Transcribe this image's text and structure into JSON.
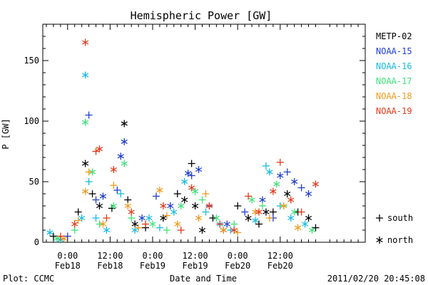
{
  "chart_data": {
    "type": "scatter",
    "title": "Hemispheric Power [GW]",
    "ylabel": "P [GW]",
    "xlabel": "Date and Time",
    "ylim": [
      0,
      180
    ],
    "yticks": [
      0,
      50,
      100,
      150
    ],
    "xlim_hours": [
      -7,
      84
    ],
    "xticks": [
      {
        "hour": 0,
        "time": "0:00",
        "date": "Feb18"
      },
      {
        "hour": 12,
        "time": "12:00",
        "date": "Feb18"
      },
      {
        "hour": 24,
        "time": "0:00",
        "date": "Feb19"
      },
      {
        "hour": 36,
        "time": "12:00",
        "date": "Feb19"
      },
      {
        "hour": 48,
        "time": "0:00",
        "date": "Feb20"
      },
      {
        "hour": 60,
        "time": "12:00",
        "date": "Feb20"
      }
    ],
    "series": [
      {
        "name": "METP-02",
        "color": "#000000",
        "points": [
          {
            "x": -4,
            "y": 5,
            "m": "+"
          },
          {
            "x": 3,
            "y": 25,
            "m": "+"
          },
          {
            "x": 5,
            "y": 65,
            "m": "*"
          },
          {
            "x": 7,
            "y": 40,
            "m": "+"
          },
          {
            "x": 9,
            "y": 30,
            "m": "*"
          },
          {
            "x": 12.5,
            "y": 28,
            "m": "+"
          },
          {
            "x": 16,
            "y": 98,
            "m": "*"
          },
          {
            "x": 17,
            "y": 35,
            "m": "+"
          },
          {
            "x": 19,
            "y": 15,
            "m": "*"
          },
          {
            "x": 22,
            "y": 12,
            "m": "+"
          },
          {
            "x": 27,
            "y": 20,
            "m": "*"
          },
          {
            "x": 31,
            "y": 40,
            "m": "+"
          },
          {
            "x": 33,
            "y": 35,
            "m": "*"
          },
          {
            "x": 35,
            "y": 65,
            "m": "+"
          },
          {
            "x": 36,
            "y": 30,
            "m": "*"
          },
          {
            "x": 38,
            "y": 10,
            "m": "*"
          },
          {
            "x": 41,
            "y": 20,
            "m": "+"
          },
          {
            "x": 44,
            "y": 10,
            "m": "*"
          },
          {
            "x": 48,
            "y": 30,
            "m": "+"
          },
          {
            "x": 51,
            "y": 20,
            "m": "*"
          },
          {
            "x": 54,
            "y": 15,
            "m": "+"
          },
          {
            "x": 56,
            "y": 25,
            "m": "*"
          },
          {
            "x": 58,
            "y": 25,
            "m": "+"
          },
          {
            "x": 62,
            "y": 40,
            "m": "*"
          },
          {
            "x": 65,
            "y": 25,
            "m": "+"
          },
          {
            "x": 68,
            "y": 20,
            "m": "*"
          },
          {
            "x": 70,
            "y": 12,
            "m": "+"
          }
        ]
      },
      {
        "name": "NOAA-15",
        "color": "#1f3ecf",
        "points": [
          {
            "x": 0,
            "y": 5,
            "m": "+"
          },
          {
            "x": 6,
            "y": 105,
            "m": "+"
          },
          {
            "x": 8,
            "y": 35,
            "m": "+"
          },
          {
            "x": 10,
            "y": 38,
            "m": "*"
          },
          {
            "x": 15,
            "y": 71,
            "m": "*"
          },
          {
            "x": 16,
            "y": 83,
            "m": "*"
          },
          {
            "x": 14,
            "y": 43,
            "m": "+"
          },
          {
            "x": 21,
            "y": 20,
            "m": "*"
          },
          {
            "x": 25,
            "y": 38,
            "m": "+"
          },
          {
            "x": 29,
            "y": 30,
            "m": "*"
          },
          {
            "x": 34,
            "y": 57,
            "m": "*"
          },
          {
            "x": 35,
            "y": 55,
            "m": "+"
          },
          {
            "x": 37,
            "y": 60,
            "m": "*"
          },
          {
            "x": 40,
            "y": 30,
            "m": "+"
          },
          {
            "x": 45,
            "y": 15,
            "m": "*"
          },
          {
            "x": 50,
            "y": 25,
            "m": "+"
          },
          {
            "x": 55,
            "y": 35,
            "m": "*"
          },
          {
            "x": 58,
            "y": 20,
            "m": "+"
          },
          {
            "x": 60,
            "y": 55,
            "m": "*"
          },
          {
            "x": 62,
            "y": 58,
            "m": "+"
          },
          {
            "x": 64,
            "y": 50,
            "m": "*"
          },
          {
            "x": 66,
            "y": 45,
            "m": "+"
          },
          {
            "x": 68,
            "y": 40,
            "m": "*"
          }
        ]
      },
      {
        "name": "NOAA-16",
        "color": "#19b9e0",
        "points": [
          {
            "x": -5,
            "y": 8,
            "m": "*"
          },
          {
            "x": -2,
            "y": 2,
            "m": "*"
          },
          {
            "x": 4,
            "y": 20,
            "m": "*"
          },
          {
            "x": 5,
            "y": 138,
            "m": "*"
          },
          {
            "x": 6,
            "y": 50,
            "m": "+"
          },
          {
            "x": 8,
            "y": 20,
            "m": "+"
          },
          {
            "x": 11,
            "y": 10,
            "m": "*"
          },
          {
            "x": 15,
            "y": 40,
            "m": "+"
          },
          {
            "x": 19,
            "y": 10,
            "m": "*"
          },
          {
            "x": 23,
            "y": 20,
            "m": "*"
          },
          {
            "x": 26,
            "y": 12,
            "m": "+"
          },
          {
            "x": 30,
            "y": 25,
            "m": "*"
          },
          {
            "x": 33,
            "y": 50,
            "m": "*"
          },
          {
            "x": 39,
            "y": 25,
            "m": "+"
          },
          {
            "x": 43,
            "y": 15,
            "m": "*"
          },
          {
            "x": 46,
            "y": 10,
            "m": "+"
          },
          {
            "x": 53,
            "y": 18,
            "m": "*"
          },
          {
            "x": 56,
            "y": 63,
            "m": "+"
          },
          {
            "x": 57,
            "y": 58,
            "m": "*"
          },
          {
            "x": 60,
            "y": 30,
            "m": "+"
          },
          {
            "x": 63,
            "y": 20,
            "m": "*"
          },
          {
            "x": 67,
            "y": 15,
            "m": "*"
          }
        ]
      },
      {
        "name": "NOAA-17",
        "color": "#3ee07a",
        "points": [
          {
            "x": -3,
            "y": 3,
            "m": "*"
          },
          {
            "x": 2,
            "y": 10,
            "m": "+"
          },
          {
            "x": 5,
            "y": 99,
            "m": "*"
          },
          {
            "x": 7,
            "y": 58,
            "m": "*"
          },
          {
            "x": 9,
            "y": 15,
            "m": "+"
          },
          {
            "x": 13,
            "y": 30,
            "m": "*"
          },
          {
            "x": 16,
            "y": 65,
            "m": "*"
          },
          {
            "x": 18,
            "y": 20,
            "m": "+"
          },
          {
            "x": 24,
            "y": 15,
            "m": "*"
          },
          {
            "x": 28,
            "y": 10,
            "m": "+"
          },
          {
            "x": 32,
            "y": 30,
            "m": "*"
          },
          {
            "x": 36,
            "y": 42,
            "m": "*"
          },
          {
            "x": 38,
            "y": 35,
            "m": "+"
          },
          {
            "x": 42,
            "y": 20,
            "m": "*"
          },
          {
            "x": 47,
            "y": 15,
            "m": "+"
          },
          {
            "x": 52,
            "y": 35,
            "m": "*"
          },
          {
            "x": 55,
            "y": 30,
            "m": "+"
          },
          {
            "x": 59,
            "y": 48,
            "m": "*"
          },
          {
            "x": 61,
            "y": 30,
            "m": "+"
          },
          {
            "x": 64,
            "y": 25,
            "m": "*"
          },
          {
            "x": 69,
            "y": 10,
            "m": "*"
          }
        ]
      },
      {
        "name": "NOAA-18",
        "color": "#f09a1e",
        "points": [
          {
            "x": -1,
            "y": 3,
            "m": "*"
          },
          {
            "x": 3,
            "y": 18,
            "m": "+"
          },
          {
            "x": 5,
            "y": 42,
            "m": "*"
          },
          {
            "x": 6,
            "y": 58,
            "m": "+"
          },
          {
            "x": 10,
            "y": 15,
            "m": "*"
          },
          {
            "x": 13,
            "y": 47,
            "m": "+"
          },
          {
            "x": 17,
            "y": 30,
            "m": "*"
          },
          {
            "x": 20,
            "y": 12,
            "m": "+"
          },
          {
            "x": 26,
            "y": 43,
            "m": "*"
          },
          {
            "x": 28,
            "y": 22,
            "m": "+"
          },
          {
            "x": 31,
            "y": 15,
            "m": "*"
          },
          {
            "x": 37,
            "y": 20,
            "m": "*"
          },
          {
            "x": 39,
            "y": 40,
            "m": "+"
          },
          {
            "x": 44,
            "y": 10,
            "m": "*"
          },
          {
            "x": 48,
            "y": 8,
            "m": "+"
          },
          {
            "x": 53,
            "y": 25,
            "m": "*"
          },
          {
            "x": 57,
            "y": 20,
            "m": "+"
          },
          {
            "x": 61,
            "y": 30,
            "m": "*"
          },
          {
            "x": 65,
            "y": 12,
            "m": "*"
          }
        ]
      },
      {
        "name": "NOAA-19",
        "color": "#e23a1a",
        "points": [
          {
            "x": -2,
            "y": 5,
            "m": "+"
          },
          {
            "x": 2,
            "y": 15,
            "m": "*"
          },
          {
            "x": 5,
            "y": 165,
            "m": "*"
          },
          {
            "x": 8,
            "y": 75,
            "m": "+"
          },
          {
            "x": 9,
            "y": 77,
            "m": "*"
          },
          {
            "x": 11,
            "y": 20,
            "m": "+"
          },
          {
            "x": 13,
            "y": 60,
            "m": "*"
          },
          {
            "x": 18,
            "y": 25,
            "m": "*"
          },
          {
            "x": 22,
            "y": 15,
            "m": "+"
          },
          {
            "x": 27,
            "y": 30,
            "m": "*"
          },
          {
            "x": 32,
            "y": 10,
            "m": "+"
          },
          {
            "x": 35,
            "y": 45,
            "m": "*"
          },
          {
            "x": 40,
            "y": 30,
            "m": "*"
          },
          {
            "x": 43,
            "y": 15,
            "m": "+"
          },
          {
            "x": 47,
            "y": 10,
            "m": "*"
          },
          {
            "x": 51,
            "y": 38,
            "m": "+"
          },
          {
            "x": 54,
            "y": 25,
            "m": "*"
          },
          {
            "x": 58,
            "y": 42,
            "m": "*"
          },
          {
            "x": 60,
            "y": 66,
            "m": "+"
          },
          {
            "x": 63,
            "y": 35,
            "m": "*"
          },
          {
            "x": 66,
            "y": 25,
            "m": "+"
          },
          {
            "x": 70,
            "y": 48,
            "m": "*"
          }
        ]
      }
    ],
    "marker_legend": [
      {
        "symbol": "+",
        "label": "south"
      },
      {
        "symbol": "*",
        "label": "north"
      }
    ],
    "grid": false,
    "legend_position": "right"
  },
  "footer": {
    "left": "Plot: CCMC",
    "right": "2011/02/20 20:45:08"
  }
}
